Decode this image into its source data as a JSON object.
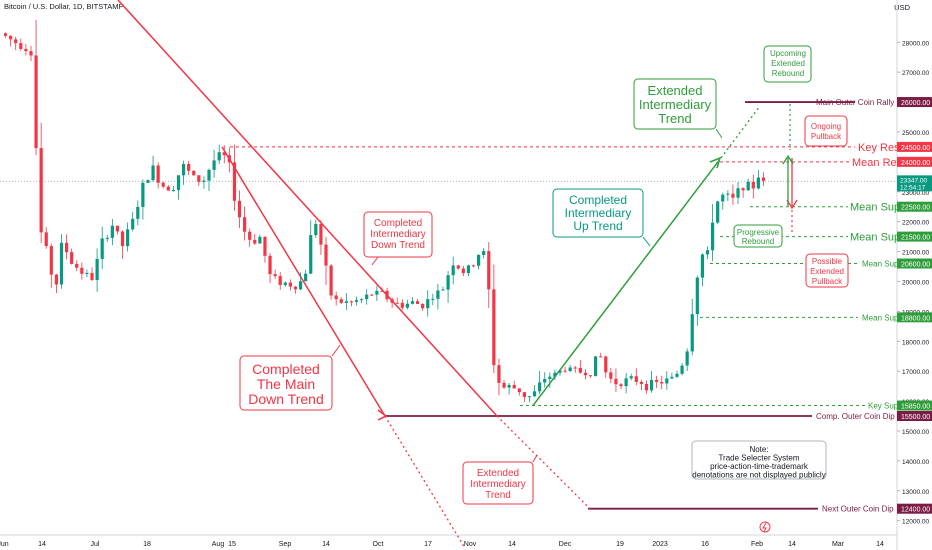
{
  "symbol": "Bitcoin / U.S. Dollar, 1D, BITSTAMP",
  "currency": "USD",
  "chart_data": {
    "type": "candlestick",
    "title": "Bitcoin / U.S. Dollar, 1D, BITSTAMP",
    "ylim": [
      11800,
      28700
    ],
    "y_ticks": [
      28000,
      27000,
      26000,
      25000,
      24000,
      23000,
      22000,
      21000,
      20000,
      19000,
      18000,
      17000,
      16000,
      15000,
      14000,
      13000,
      12000
    ],
    "x_tick_labels": [
      "Jun",
      "14",
      "Jul",
      "18",
      "Aug",
      "15",
      "Sep",
      "14",
      "Oct",
      "17",
      "Nov",
      "14",
      "Dec",
      "19",
      "2023",
      "16",
      "Feb",
      "14",
      "Mar",
      "14"
    ],
    "price_path": [
      [
        3,
        28300
      ],
      [
        33,
        27700
      ],
      [
        37,
        27200
      ],
      [
        40,
        22200
      ],
      [
        46,
        21200
      ],
      [
        52,
        20800
      ],
      [
        57,
        19500
      ],
      [
        65,
        21300
      ],
      [
        75,
        20600
      ],
      [
        85,
        20300
      ],
      [
        95,
        20100
      ],
      [
        105,
        21300
      ],
      [
        115,
        21900
      ],
      [
        125,
        21200
      ],
      [
        135,
        22000
      ],
      [
        145,
        23100
      ],
      [
        155,
        23800
      ],
      [
        165,
        23200
      ],
      [
        175,
        23100
      ],
      [
        185,
        23900
      ],
      [
        195,
        23500
      ],
      [
        205,
        23300
      ],
      [
        215,
        24000
      ],
      [
        225,
        24300
      ],
      [
        232,
        23800
      ],
      [
        240,
        22400
      ],
      [
        248,
        21600
      ],
      [
        255,
        21300
      ],
      [
        263,
        21500
      ],
      [
        272,
        20200
      ],
      [
        282,
        20000
      ],
      [
        292,
        19900
      ],
      [
        300,
        19800
      ],
      [
        308,
        20300
      ],
      [
        315,
        21800
      ],
      [
        320,
        22100
      ],
      [
        326,
        20600
      ],
      [
        335,
        19400
      ],
      [
        345,
        19300
      ],
      [
        355,
        19300
      ],
      [
        365,
        19400
      ],
      [
        375,
        19600
      ],
      [
        385,
        19600
      ],
      [
        395,
        19300
      ],
      [
        405,
        19200
      ],
      [
        415,
        19300
      ],
      [
        425,
        19200
      ],
      [
        435,
        19500
      ],
      [
        445,
        19700
      ],
      [
        455,
        20700
      ],
      [
        465,
        20300
      ],
      [
        475,
        20500
      ],
      [
        485,
        21200
      ],
      [
        490,
        20200
      ],
      [
        496,
        17500
      ],
      [
        503,
        16400
      ],
      [
        510,
        16500
      ],
      [
        520,
        16400
      ],
      [
        530,
        16100
      ],
      [
        538,
        16300
      ],
      [
        548,
        16800
      ],
      [
        558,
        16900
      ],
      [
        568,
        17100
      ],
      [
        580,
        17000
      ],
      [
        592,
        16900
      ],
      [
        602,
        17600
      ],
      [
        610,
        16800
      ],
      [
        620,
        16600
      ],
      [
        630,
        16700
      ],
      [
        640,
        16700
      ],
      [
        650,
        16500
      ],
      [
        660,
        16600
      ],
      [
        672,
        16700
      ],
      [
        682,
        17000
      ],
      [
        690,
        17800
      ],
      [
        697,
        19800
      ],
      [
        703,
        20900
      ],
      [
        710,
        20900
      ],
      [
        716,
        22400
      ],
      [
        722,
        22800
      ],
      [
        728,
        22900
      ],
      [
        735,
        22700
      ],
      [
        742,
        23100
      ],
      [
        748,
        23300
      ],
      [
        754,
        23000
      ],
      [
        760,
        23600
      ],
      [
        766,
        23300
      ]
    ],
    "annotations": [
      {
        "text": "Completed Intermediary Down Trend",
        "color": "#f23645"
      },
      {
        "text": "Completed The Main Down Trend",
        "color": "#f23645"
      },
      {
        "text": "Completed Intermediary Up Trend",
        "color": "#089981"
      },
      {
        "text": "Extended Intermediary Trend",
        "color": "#2e9e3a"
      },
      {
        "text": "Extended Intermediary Trend",
        "color": "#f23645"
      },
      {
        "text": "Upcoming Extended Rebound",
        "color": "#2e9e3a"
      },
      {
        "text": "Ongoing Pullback",
        "color": "#f23645"
      },
      {
        "text": "Progressive Rebound",
        "color": "#2e9e3a"
      },
      {
        "text": "Possible Extended Pullback",
        "color": "#f23645"
      },
      {
        "text": "Note: Trade Selecter System price-action-time-trademark denotations are not displayed publicly",
        "color": "#131722"
      }
    ],
    "levels": [
      {
        "name": "Main Outer Coin Rally",
        "value": 26000,
        "color": "#7b1c45"
      },
      {
        "name": "Key Res",
        "value": 24500,
        "color": "#f23645"
      },
      {
        "name": "Mean Res",
        "value": 24000,
        "color": "#f23645"
      },
      {
        "name": "Mean Sup",
        "value": 22500,
        "color": "#2e9e3a"
      },
      {
        "name": "Mean Sup",
        "value": 21500,
        "color": "#2e9e3a"
      },
      {
        "name": "Mean Sup",
        "value": 20600,
        "color": "#2e9e3a"
      },
      {
        "name": "Mean Sup",
        "value": 18800,
        "color": "#2e9e3a"
      },
      {
        "name": "Key Sup",
        "value": 15850,
        "color": "#2e9e3a"
      },
      {
        "name": "Comp. Outer Coin Dip",
        "value": 15500,
        "color": "#7b1c45"
      },
      {
        "name": "Next Outer Coin Dip",
        "value": 12400,
        "color": "#7b1c45"
      }
    ],
    "current_price": {
      "label": "23347.00",
      "countdown": "12:54:17",
      "value": 23347
    },
    "colors": {
      "up": "#089981",
      "down": "#f23645",
      "support": "#2e9e3a",
      "resistance": "#f23645",
      "outer": "#7b1c45"
    }
  }
}
